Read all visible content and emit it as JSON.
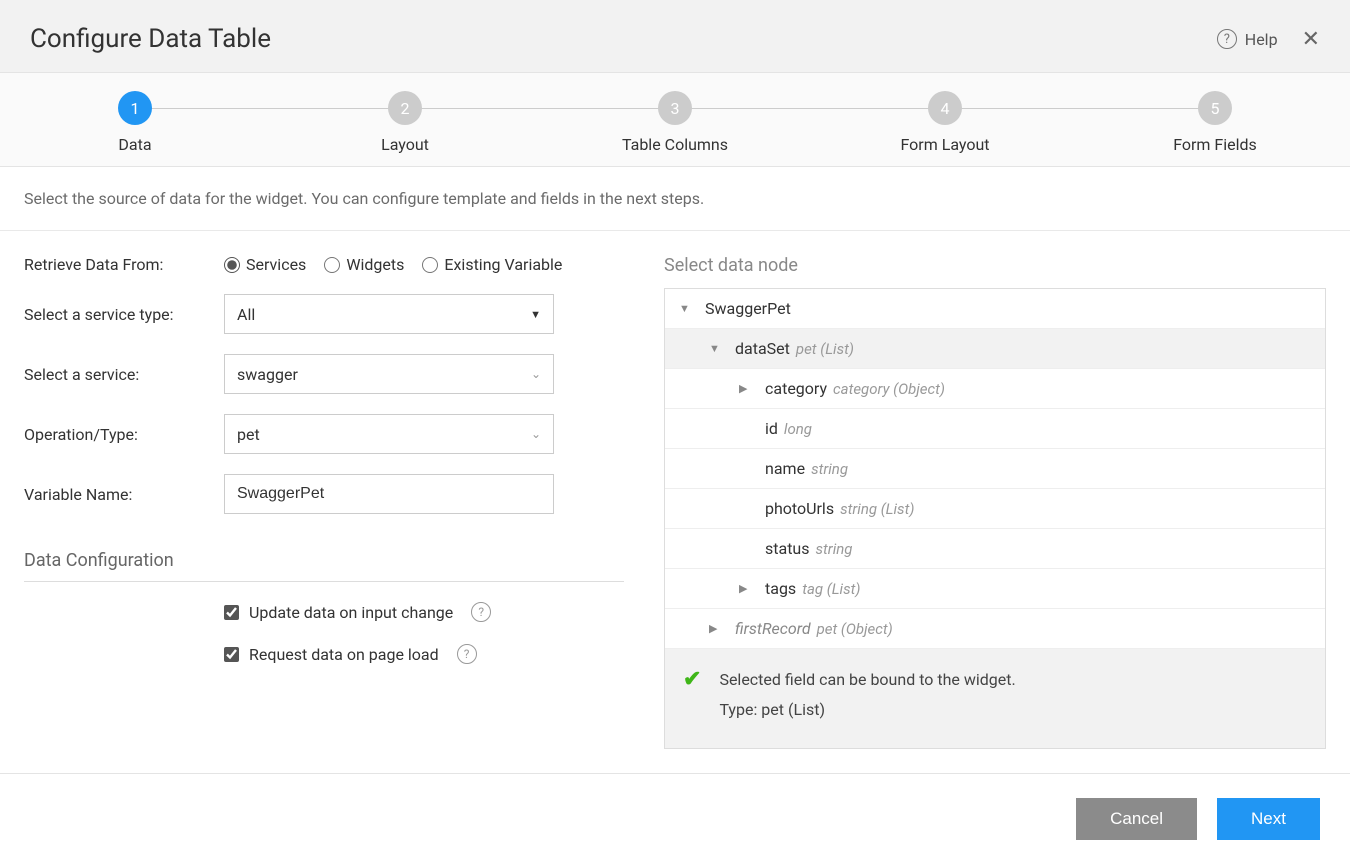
{
  "dialog": {
    "title": "Configure Data Table",
    "help_label": "Help"
  },
  "stepper": {
    "steps": [
      {
        "num": "1",
        "label": "Data",
        "active": true
      },
      {
        "num": "2",
        "label": "Layout",
        "active": false
      },
      {
        "num": "3",
        "label": "Table Columns",
        "active": false
      },
      {
        "num": "4",
        "label": "Form Layout",
        "active": false
      },
      {
        "num": "5",
        "label": "Form Fields",
        "active": false
      }
    ]
  },
  "description": "Select the source of data for the widget. You can configure template and fields in the next steps.",
  "form": {
    "retrieve_label": "Retrieve Data From:",
    "retrieve_options": {
      "services": "Services",
      "widgets": "Widgets",
      "existing_variable": "Existing Variable"
    },
    "service_type_label": "Select a service type:",
    "service_type_value": "All",
    "service_label": "Select a service:",
    "service_value": "swagger",
    "operation_label": "Operation/Type:",
    "operation_value": "pet",
    "variable_label": "Variable Name:",
    "variable_value": "SwaggerPet",
    "data_config_header": "Data Configuration",
    "update_on_change": "Update data on input change",
    "request_on_load": "Request data on page load"
  },
  "tree": {
    "title": "Select data node",
    "nodes": {
      "root": {
        "name": "SwaggerPet"
      },
      "dataset": {
        "name": "dataSet",
        "type": "pet (List)"
      },
      "category": {
        "name": "category",
        "type": "category (Object)"
      },
      "id": {
        "name": "id",
        "type": "long"
      },
      "name_field": {
        "name": "name",
        "type": "string"
      },
      "photoUrls": {
        "name": "photoUrls",
        "type": "string (List)"
      },
      "status": {
        "name": "status",
        "type": "string"
      },
      "tags": {
        "name": "tags",
        "type": "tag (List)"
      },
      "firstRecord": {
        "name": "firstRecord",
        "type": "pet (Object)"
      }
    },
    "footer": {
      "line1": "Selected field can be bound to the widget.",
      "line2": "Type: pet (List)"
    }
  },
  "footer": {
    "cancel": "Cancel",
    "next": "Next"
  }
}
